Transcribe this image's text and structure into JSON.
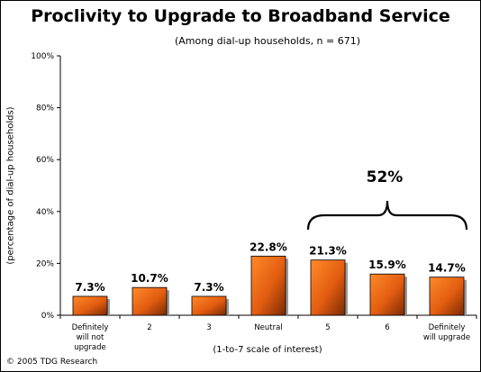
{
  "chart_data": {
    "type": "bar",
    "title": "Proclivity to Upgrade to Broadband Service",
    "subtitle": "(Among dial-up households, n = 671)",
    "xlabel": "(1-to-7 scale of interest)",
    "ylabel": "(percentage of dial-up households)",
    "categories": [
      "Definitely will not upgrade",
      "2",
      "3",
      "Neutral",
      "5",
      "6",
      "Definitely will upgrade"
    ],
    "values": [
      7.3,
      10.7,
      7.3,
      22.8,
      21.3,
      15.9,
      14.7
    ],
    "value_labels": [
      "7.3%",
      "10.7%",
      "7.3%",
      "22.8%",
      "21.3%",
      "15.9%",
      "14.7%"
    ],
    "ylim": [
      0,
      100
    ],
    "yticks": [
      0,
      20,
      40,
      60,
      80,
      100
    ],
    "ytick_labels": [
      "0%",
      "20%",
      "40%",
      "60%",
      "80%",
      "100%"
    ],
    "grid": false,
    "bar_color": "#e8601a",
    "annotation": {
      "text": "52%",
      "span_categories": [
        "5",
        "Definitely will upgrade"
      ]
    }
  },
  "footer": "© 2005 TDG Research"
}
